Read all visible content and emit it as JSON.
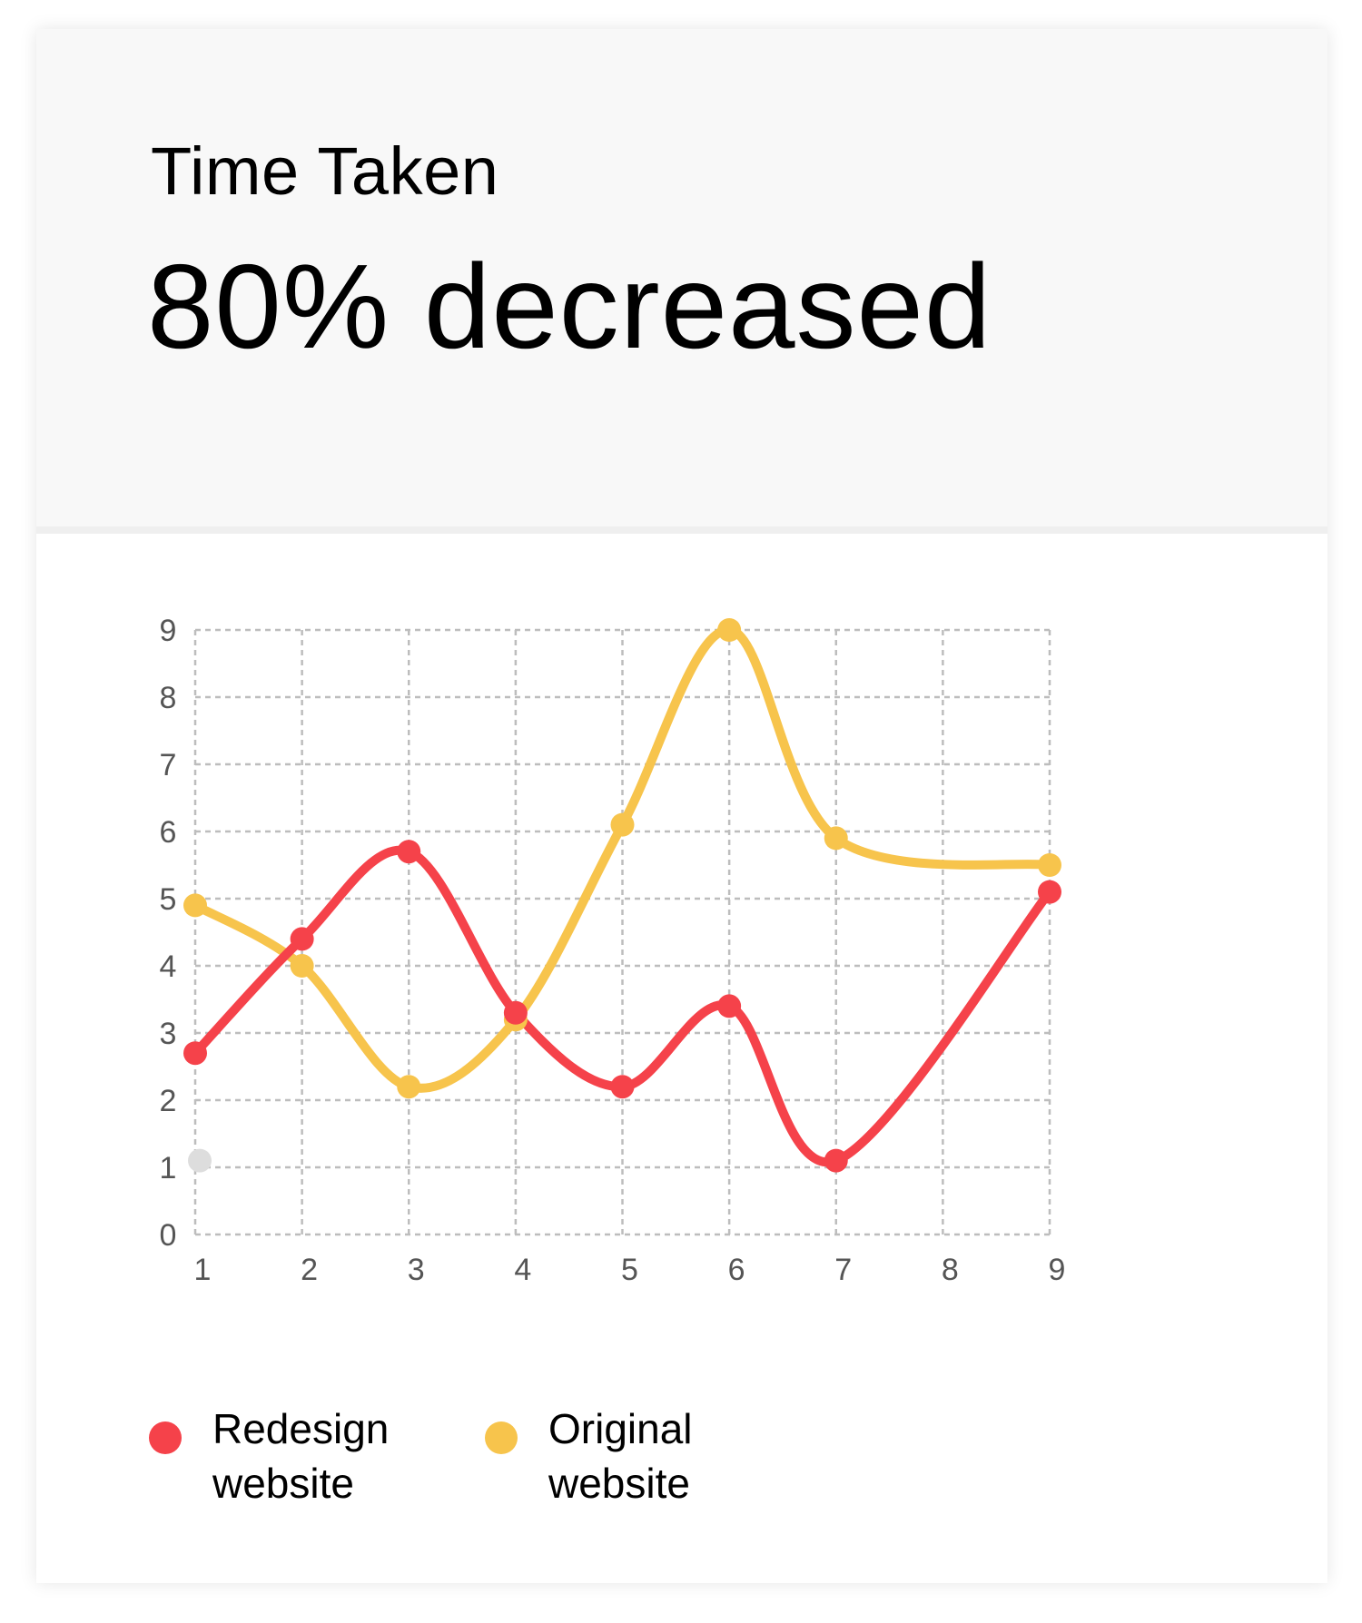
{
  "card": {
    "metric_label": "Time Taken",
    "metric_value": "80% decreased"
  },
  "chart_data": {
    "type": "line",
    "title": "",
    "xlabel": "",
    "ylabel": "",
    "x": [
      1,
      2,
      3,
      4,
      5,
      6,
      7,
      8,
      9
    ],
    "x_ticks": [
      "1",
      "2",
      "3",
      "4",
      "5",
      "6",
      "7",
      "8",
      "9"
    ],
    "y_ticks": [
      "0",
      "1",
      "2",
      "3",
      "4",
      "5",
      "6",
      "7",
      "8",
      "9"
    ],
    "xlim": [
      1,
      9
    ],
    "ylim": [
      0,
      9
    ],
    "grid": true,
    "curve": "smooth",
    "legend_position": "bottom-left",
    "series": [
      {
        "name": "Redesign website",
        "color": "#f5424a",
        "x": [
          1,
          2,
          3,
          4,
          5,
          6,
          7,
          9
        ],
        "y": [
          2.7,
          4.4,
          5.7,
          3.3,
          2.2,
          3.4,
          1.1,
          5.1
        ]
      },
      {
        "name": "Original website",
        "color": "#f7c44c",
        "x": [
          1,
          2,
          3,
          4,
          5,
          6,
          7,
          9
        ],
        "y": [
          4.9,
          4.0,
          2.2,
          3.2,
          6.1,
          9.0,
          5.9,
          5.5
        ]
      }
    ],
    "extra_point": {
      "x": 1,
      "y": 1.1,
      "color": "#dddddd"
    }
  }
}
